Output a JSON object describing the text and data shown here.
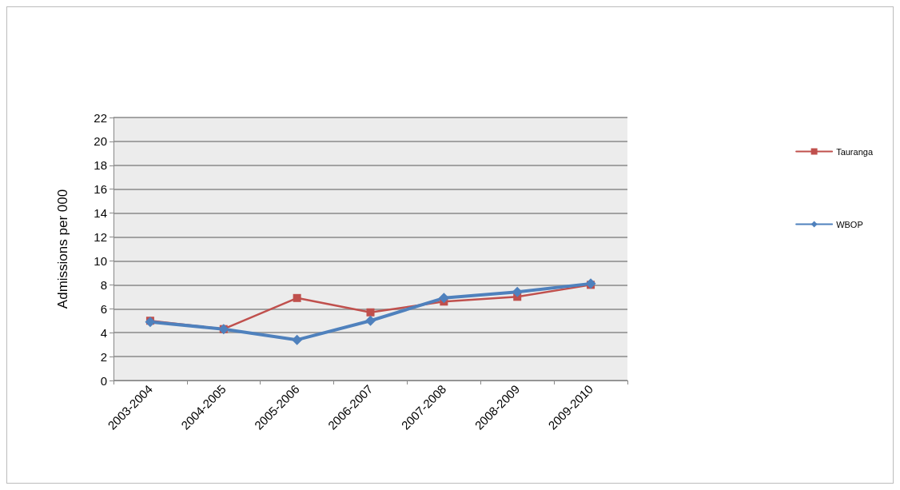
{
  "chart_data": {
    "type": "line",
    "ylabel": "Admissions per 000",
    "categories": [
      "2003-2004",
      "2004-2005",
      "2005-2006",
      "2006-2007",
      "2007-2008",
      "2008-2009",
      "2009-2010"
    ],
    "series": [
      {
        "name": "Tauranga",
        "color": "#c0504d",
        "marker": "square",
        "values": [
          5.0,
          4.3,
          6.9,
          5.7,
          6.6,
          7.0,
          8.0
        ]
      },
      {
        "name": "WBOP",
        "color": "#4f81bd",
        "marker": "diamond",
        "values": [
          4.9,
          4.3,
          3.4,
          5.0,
          6.9,
          7.4,
          8.1
        ]
      }
    ],
    "ylim": [
      0,
      22
    ],
    "yticks": [
      0,
      2,
      4,
      6,
      8,
      10,
      12,
      14,
      16,
      18,
      20,
      22
    ],
    "grid": "y",
    "legend": "right"
  }
}
